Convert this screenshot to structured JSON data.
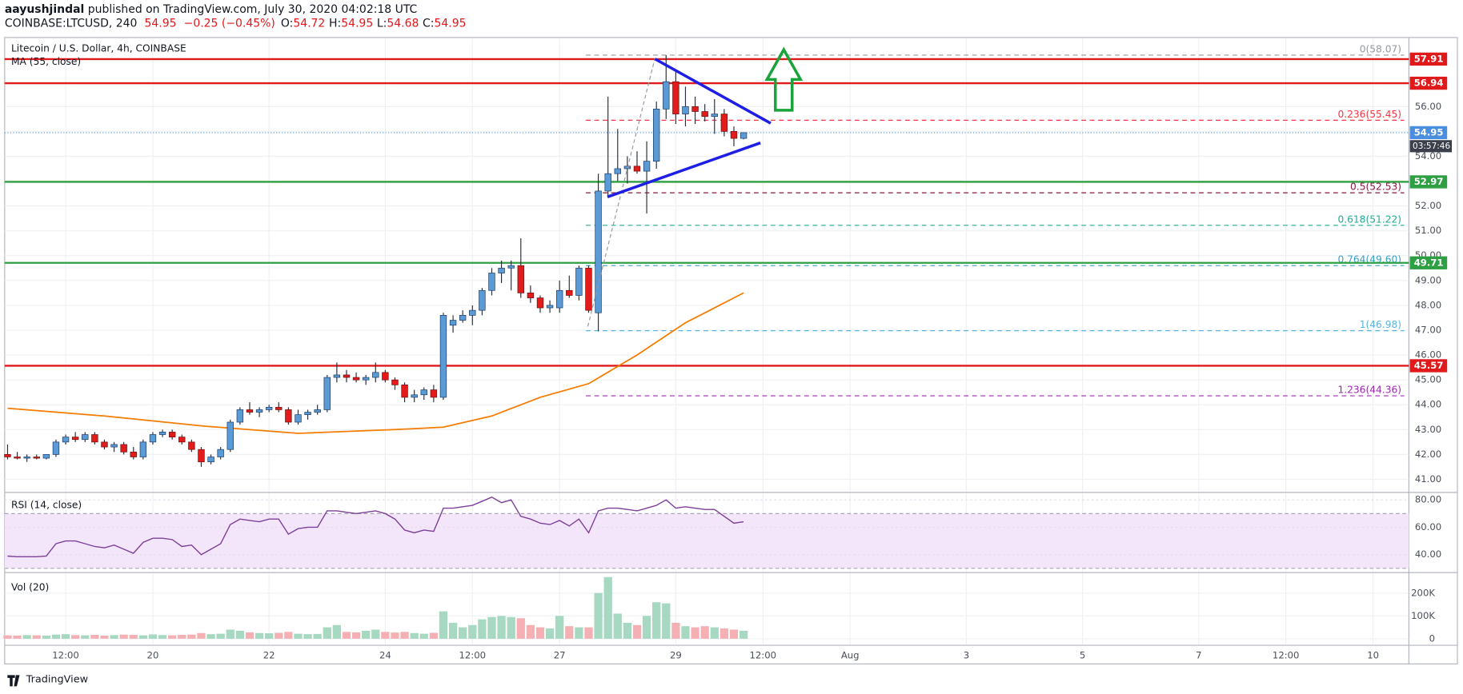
{
  "header": {
    "author": "aayushjindal",
    "published": "published on TradingView.com, July 30, 2020 04:02:18 UTC",
    "symbol": "COINBASE:LTCUSD, 240",
    "last": 54.95,
    "change": "−0.25 (−0.45%)",
    "ohlc": [
      {
        "label": "O:",
        "value": 54.72
      },
      {
        "label": "H:",
        "value": 54.95
      },
      {
        "label": "L:",
        "value": 54.68
      },
      {
        "label": "C:",
        "value": 54.95
      }
    ]
  },
  "chart_data": [
    {
      "type": "candlestick",
      "title": "Litecoin / U.S. Dollar, 4h, COINBASE",
      "up_color": "#5b9bd5",
      "down_color": "#e31b1b",
      "open": [
        42.0,
        41.9,
        41.85,
        41.9,
        41.85,
        42.0,
        42.5,
        42.7,
        42.6,
        42.8,
        42.5,
        42.3,
        42.4,
        42.1,
        41.9,
        42.5,
        42.8,
        42.9,
        42.7,
        42.5,
        42.2,
        41.7,
        41.9,
        42.2,
        43.3,
        43.8,
        43.7,
        43.8,
        43.9,
        43.8,
        43.3,
        43.6,
        43.7,
        43.8,
        45.1,
        45.2,
        45.1,
        45.0,
        45.1,
        45.3,
        45.0,
        44.8,
        44.3,
        44.4,
        44.6,
        44.3,
        47.2,
        47.4,
        47.6,
        47.8,
        48.6,
        49.3,
        49.5,
        49.6,
        48.5,
        48.3,
        47.9,
        47.9,
        48.6,
        48.4,
        49.5,
        47.7,
        52.6,
        53.3,
        53.5,
        53.6,
        53.4,
        53.8,
        55.9,
        57.0,
        55.7,
        56.0,
        55.8,
        55.6,
        55.7,
        55.0,
        54.72
      ],
      "high": [
        42.4,
        42.1,
        42.0,
        42.0,
        42.0,
        42.6,
        42.8,
        42.9,
        42.9,
        42.9,
        42.6,
        42.5,
        42.5,
        42.3,
        42.6,
        42.9,
        43.0,
        43.0,
        42.8,
        42.6,
        42.3,
        42.0,
        42.3,
        43.4,
        43.9,
        44.1,
        43.9,
        44.0,
        44.1,
        43.9,
        43.8,
        43.8,
        44.0,
        45.2,
        45.7,
        45.4,
        45.3,
        45.2,
        45.7,
        45.4,
        45.1,
        44.9,
        44.6,
        44.7,
        44.8,
        47.7,
        47.6,
        47.8,
        48.0,
        48.7,
        49.5,
        49.8,
        49.8,
        50.7,
        48.8,
        48.4,
        48.2,
        49.0,
        49.2,
        49.6,
        49.6,
        53.3,
        56.4,
        55.1,
        54.0,
        54.2,
        54.6,
        56.2,
        58.07,
        57.5,
        56.8,
        56.4,
        56.1,
        56.3,
        55.9,
        55.2,
        54.95
      ],
      "low": [
        41.8,
        41.8,
        41.7,
        41.8,
        41.8,
        41.9,
        42.4,
        42.5,
        42.5,
        42.4,
        42.2,
        42.1,
        42.0,
        41.8,
        41.8,
        42.4,
        42.7,
        42.6,
        42.4,
        42.1,
        41.5,
        41.6,
        41.8,
        42.1,
        43.2,
        43.6,
        43.5,
        43.7,
        43.7,
        43.2,
        43.2,
        43.4,
        43.6,
        43.7,
        44.9,
        44.9,
        44.9,
        44.8,
        44.9,
        44.9,
        44.6,
        44.1,
        44.1,
        44.2,
        44.1,
        44.2,
        46.9,
        47.3,
        47.2,
        47.6,
        48.4,
        48.9,
        48.6,
        48.3,
        48.1,
        47.7,
        47.7,
        47.7,
        48.3,
        48.2,
        47.7,
        46.95,
        52.4,
        53.0,
        52.9,
        53.3,
        51.7,
        53.5,
        55.5,
        55.3,
        55.2,
        55.3,
        55.4,
        54.9,
        54.8,
        54.4,
        54.68
      ],
      "close": [
        41.9,
        41.85,
        41.9,
        41.85,
        42.0,
        42.5,
        42.7,
        42.6,
        42.8,
        42.5,
        42.3,
        42.4,
        42.1,
        41.9,
        42.5,
        42.8,
        42.9,
        42.7,
        42.5,
        42.2,
        41.7,
        41.9,
        42.2,
        43.3,
        43.8,
        43.7,
        43.8,
        43.9,
        43.8,
        43.3,
        43.6,
        43.7,
        43.8,
        45.1,
        45.2,
        45.1,
        45.0,
        45.1,
        45.3,
        45.0,
        44.8,
        44.3,
        44.4,
        44.6,
        44.3,
        47.6,
        47.4,
        47.6,
        47.8,
        48.6,
        49.3,
        49.5,
        49.6,
        48.5,
        48.3,
        47.9,
        48.0,
        48.6,
        48.4,
        49.5,
        47.8,
        52.6,
        53.3,
        53.5,
        53.6,
        53.4,
        53.8,
        55.9,
        57.0,
        55.7,
        56.0,
        55.8,
        55.6,
        55.7,
        55.0,
        54.72,
        54.95
      ],
      "ma": {
        "name": "MA (55, close)",
        "color": "#f57c00",
        "x": [
          0,
          10,
          20,
          30,
          40,
          45,
          50,
          55,
          60,
          65,
          70,
          76
        ],
        "values": [
          43.86,
          43.55,
          43.15,
          42.85,
          43.0,
          43.1,
          43.55,
          44.3,
          44.85,
          46.0,
          47.3,
          48.5
        ]
      },
      "xlim": [
        -0.3,
        144.7
      ],
      "xticks": [
        {
          "value": 6,
          "label": "12:00"
        },
        {
          "value": 15,
          "label": "20"
        },
        {
          "value": 27,
          "label": "22"
        },
        {
          "value": 39,
          "label": "24"
        },
        {
          "value": 48,
          "label": "12:00"
        },
        {
          "value": 57,
          "label": "27"
        },
        {
          "value": 69,
          "label": "29"
        },
        {
          "value": 78,
          "label": "12:00"
        },
        {
          "value": 87,
          "label": "Aug"
        },
        {
          "value": 99,
          "label": "3"
        },
        {
          "value": 111,
          "label": "5"
        },
        {
          "value": 123,
          "label": "7"
        },
        {
          "value": 132,
          "label": "12:00"
        },
        {
          "value": 141,
          "label": "10"
        }
      ],
      "ylim": [
        40.51,
        58.74
      ],
      "yticks": [
        {
          "value": 41,
          "label": "41.00"
        },
        {
          "value": 42,
          "label": "42.00"
        },
        {
          "value": 43,
          "label": "43.00"
        },
        {
          "value": 44,
          "label": "44.00"
        },
        {
          "value": 45,
          "label": "45.00"
        },
        {
          "value": 46,
          "label": "46.00"
        },
        {
          "value": 47,
          "label": "47.00"
        },
        {
          "value": 48,
          "label": "48.00"
        },
        {
          "value": 49,
          "label": "49.00"
        },
        {
          "value": 50,
          "label": "50.00"
        },
        {
          "value": 51,
          "label": "51.00"
        },
        {
          "value": 52,
          "label": "52.00"
        },
        {
          "value": 53,
          "label": "53.00"
        },
        {
          "value": 54,
          "label": "54.00"
        },
        {
          "value": 55,
          "label": "55.00"
        },
        {
          "value": 56,
          "label": "56.00"
        }
      ],
      "grid": true,
      "levels": [
        {
          "value": 57.91,
          "color": "#e0191b"
        },
        {
          "value": 56.94,
          "color": "#e0191b"
        },
        {
          "value": 52.97,
          "color": "#2ea043"
        },
        {
          "value": 49.71,
          "color": "#2ea043"
        },
        {
          "value": 45.57,
          "color": "#e0191b"
        }
      ],
      "fibs": [
        {
          "label": "0(58.07)",
          "value": 58.07,
          "color": "#9598a1"
        },
        {
          "label": "0.236(55.45)",
          "value": 55.45,
          "color": "#f23645"
        },
        {
          "label": "0.5(52.53)",
          "value": 52.53,
          "color": "#8b1a3c"
        },
        {
          "label": "0.618(51.22)",
          "value": 51.22,
          "color": "#22ab94"
        },
        {
          "label": "0.764(49.60)",
          "value": 49.6,
          "color": "#3a9fc4"
        },
        {
          "label": "1(46.98)",
          "value": 46.98,
          "color": "#5ab4e0"
        },
        {
          "label": "1.236(44.36)",
          "value": 44.36,
          "color": "#9c27b0"
        }
      ],
      "last_price": 54.95,
      "last_color": "#4a8ee0",
      "countdown": "03:57:46"
    },
    {
      "type": "rsi",
      "title": "RSI (14, close)",
      "color": "#7e3f98",
      "band": [
        30,
        70
      ],
      "values": [
        39,
        38.5,
        38.5,
        38.5,
        39,
        48,
        50,
        50,
        48,
        46,
        45,
        47,
        44,
        41,
        49,
        52,
        52,
        51,
        46,
        47,
        40,
        44,
        48,
        62,
        66,
        65,
        64,
        66,
        66,
        55,
        59,
        60,
        60,
        72,
        72,
        71,
        70,
        71,
        72,
        70,
        66,
        58,
        56,
        58,
        57,
        74,
        74,
        75,
        76,
        79,
        82,
        78,
        80,
        68,
        66,
        63,
        62,
        65,
        61,
        66,
        56,
        72,
        74,
        74,
        73,
        72,
        74,
        76,
        80,
        74,
        75,
        74,
        73,
        73,
        68,
        63,
        64
      ],
      "ylim": [
        27.6,
        84.8
      ],
      "yticks": [
        {
          "value": 80,
          "label": "80.00"
        },
        {
          "value": 60,
          "label": "60.00"
        },
        {
          "value": 40,
          "label": "40.00"
        }
      ]
    },
    {
      "type": "volume",
      "title": "Vol (20)",
      "up_color": "#a6d8c2",
      "down_color": "#f5b0b3",
      "values": [
        15000,
        14000,
        16000,
        15000,
        14000,
        18000,
        20000,
        16000,
        15000,
        17000,
        14000,
        16000,
        18000,
        17000,
        15000,
        19000,
        16000,
        15000,
        17000,
        18000,
        25000,
        20000,
        22000,
        40000,
        35000,
        28000,
        25000,
        24000,
        26000,
        30000,
        22000,
        20000,
        21000,
        50000,
        60000,
        30000,
        28000,
        35000,
        40000,
        30000,
        27000,
        30000,
        25000,
        22000,
        26000,
        120000,
        70000,
        50000,
        60000,
        85000,
        95000,
        100000,
        95000,
        90000,
        60000,
        50000,
        45000,
        100000,
        55000,
        50000,
        50000,
        200000,
        270000,
        110000,
        70000,
        60000,
        100000,
        160000,
        155000,
        70000,
        55000,
        50000,
        55000,
        50000,
        45000,
        40000,
        35000
      ],
      "ylim": [
        -24500,
        285700
      ],
      "yticks": [
        {
          "value": 200000,
          "label": "200K"
        },
        {
          "value": 100000,
          "label": "100K"
        },
        {
          "value": 0,
          "label": "0"
        }
      ]
    }
  ],
  "footer": {
    "brand": "TradingView"
  }
}
